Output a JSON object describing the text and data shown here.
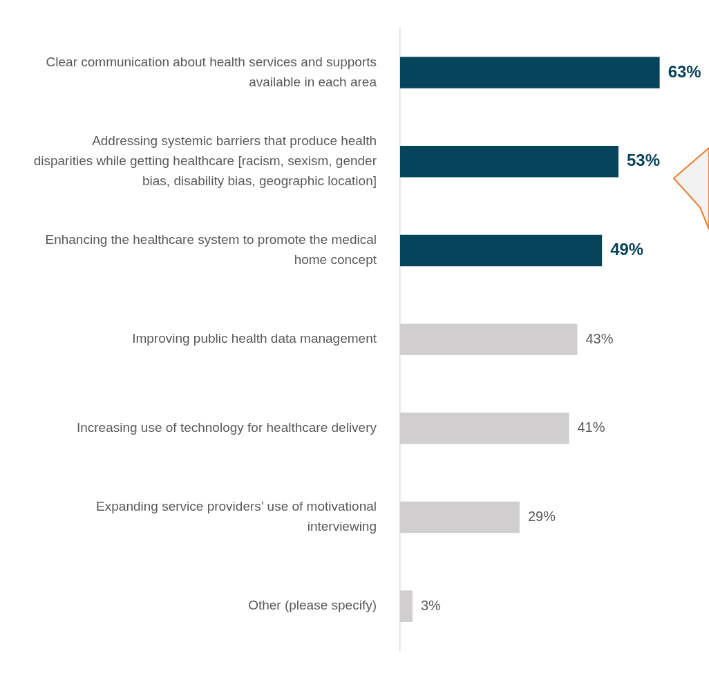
{
  "chart_data": {
    "type": "bar",
    "orientation": "horizontal",
    "categories": [
      "Clear communication about health services and supports available in each area",
      "Addressing systemic barriers that produce health disparities while getting healthcare [racism, sexism, gender bias, disability bias, geographic location]",
      "Enhancing the healthcare system to promote the medical home concept",
      "Improving public health data management",
      "Increasing use of technology for healthcare delivery",
      "Expanding service providers’ use of motivational interviewing",
      "Other (please specify)"
    ],
    "values": [
      63,
      53,
      49,
      43,
      41,
      29,
      3
    ],
    "colors": [
      "#06445c",
      "#06445c",
      "#06445c",
      "#d0cecf",
      "#d0cecf",
      "#d0cecf",
      "#d0cecf"
    ],
    "value_labels": [
      "63%",
      "53%",
      "49%",
      "43%",
      "41%",
      "29%",
      "3%"
    ],
    "legend": false
  }
}
